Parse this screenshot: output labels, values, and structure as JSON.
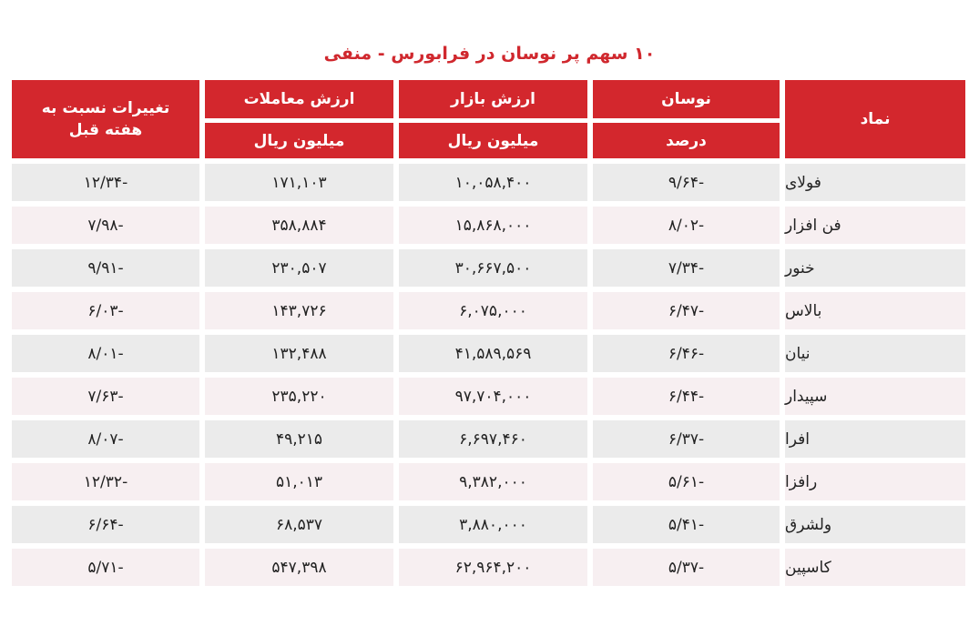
{
  "title": "۱۰ سهم پر نوسان در فرابورس - منفی",
  "colors": {
    "header": "#d3272d",
    "title": "#d0282e",
    "row_odd": "#ebebeb",
    "row_even": "#f7eff1"
  },
  "headers": {
    "symbol": "نماد",
    "volatility": "نوسان",
    "volatility_unit": "درصد",
    "market_value": "ارزش بازار",
    "market_value_unit": "میلیون ریال",
    "trade_value": "ارزش معاملات",
    "trade_value_unit": "میلیون ریال",
    "weekly_change": "تغییرات نسبت به هفته قبل"
  },
  "rows": [
    {
      "symbol": "فولای",
      "volatility": "-۹/۶۴",
      "market_value": "۱۰,۰۵۸,۴۰۰",
      "trade_value": "۱۷۱,۱۰۳",
      "weekly_change": "-۱۲/۳۴"
    },
    {
      "symbol": "فن افزار",
      "volatility": "-۸/۰۲",
      "market_value": "۱۵,۸۶۸,۰۰۰",
      "trade_value": "۳۵۸,۸۸۴",
      "weekly_change": "-۷/۹۸"
    },
    {
      "symbol": "خنور",
      "volatility": "-۷/۳۴",
      "market_value": "۳۰,۶۶۷,۵۰۰",
      "trade_value": "۲۳۰,۵۰۷",
      "weekly_change": "-۹/۹۱"
    },
    {
      "symbol": "بالاس",
      "volatility": "-۶/۴۷",
      "market_value": "۶,۰۷۵,۰۰۰",
      "trade_value": "۱۴۳,۷۲۶",
      "weekly_change": "-۶/۰۳"
    },
    {
      "symbol": "نیان",
      "volatility": "-۶/۴۶",
      "market_value": "۴۱,۵۸۹,۵۶۹",
      "trade_value": "۱۳۲,۴۸۸",
      "weekly_change": "-۸/۰۱"
    },
    {
      "symbol": "سپیدار",
      "volatility": "-۶/۴۴",
      "market_value": "۹۷,۷۰۴,۰۰۰",
      "trade_value": "۲۳۵,۲۲۰",
      "weekly_change": "-۷/۶۳"
    },
    {
      "symbol": "افرا",
      "volatility": "-۶/۳۷",
      "market_value": "۶,۶۹۷,۴۶۰",
      "trade_value": "۴۹,۲۱۵",
      "weekly_change": "-۸/۰۷"
    },
    {
      "symbol": "رافزا",
      "volatility": "-۵/۶۱",
      "market_value": "۹,۳۸۲,۰۰۰",
      "trade_value": "۵۱,۰۱۳",
      "weekly_change": "-۱۲/۳۲"
    },
    {
      "symbol": "ولشرق",
      "volatility": "-۵/۴۱",
      "market_value": "۳,۸۸۰,۰۰۰",
      "trade_value": "۶۸,۵۳۷",
      "weekly_change": "-۶/۶۴"
    },
    {
      "symbol": "کاسپین",
      "volatility": "-۵/۳۷",
      "market_value": "۶۲,۹۶۴,۲۰۰",
      "trade_value": "۵۴۷,۳۹۸",
      "weekly_change": "-۵/۷۱"
    }
  ]
}
